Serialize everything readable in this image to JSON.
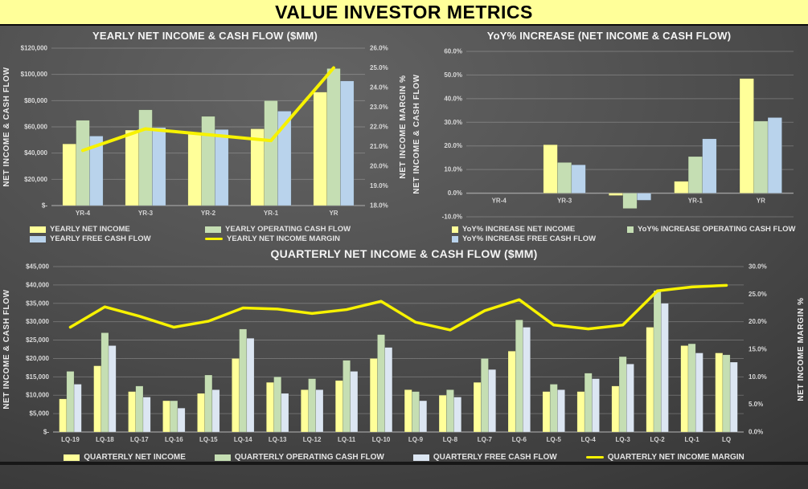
{
  "page": {
    "title": "VALUE INVESTOR METRICS"
  },
  "colors": {
    "title_bg": "#FFFF99",
    "bar_yellow": "#FFFF99",
    "bar_green": "#C5DEB3",
    "bar_blue": "#B9D3EC",
    "bar_blue_light": "#DCE6F2",
    "line_yellow": "#F7F200",
    "gridline": "rgba(255,255,255,0.22)",
    "zero_axis": "#9e9e9e"
  },
  "chart_data": [
    {
      "type": "bar+line",
      "title": "YEARLY NET INCOME & CASH FLOW ($MM)",
      "categories": [
        "YR-4",
        "YR-3",
        "YR-2",
        "YR-1",
        "YR"
      ],
      "series": [
        {
          "name": "YEARLY NET INCOME",
          "type": "bar",
          "color": "#FFFF99",
          "values": [
            47000,
            57500,
            55500,
            58500,
            86500
          ]
        },
        {
          "name": "YEARLY OPERATING CASH FLOW",
          "type": "bar",
          "color": "#C5DEB3",
          "values": [
            65000,
            73000,
            68000,
            80000,
            104500
          ]
        },
        {
          "name": "YEARLY FREE CASH FLOW",
          "type": "bar",
          "color": "#B9D3EC",
          "values": [
            53000,
            59500,
            58000,
            72000,
            95000
          ]
        },
        {
          "name": "YEARLY NET INCOME MARGIN",
          "type": "line",
          "axis": "right",
          "color": "#F7F200",
          "values": [
            20.8,
            21.9,
            21.6,
            21.3,
            25.0
          ]
        }
      ],
      "left_axis": {
        "label": "NET INCOME & CASH FLOW",
        "min": 0,
        "max": 120000,
        "step": 20000,
        "format": "usd"
      },
      "right_axis": {
        "label": "NET INCOME MARGIN %",
        "min": 18,
        "max": 26,
        "step": 1,
        "format": "pct"
      },
      "grid": true,
      "legend_position": "bottom"
    },
    {
      "type": "bar",
      "title": "YoY% INCREASE (NET INCOME & CASH FLOW)",
      "categories": [
        "YR-4",
        "YR-3",
        "YR-2",
        "YR-1",
        "YR"
      ],
      "series": [
        {
          "name": "YoY% INCREASE NET INCOME",
          "type": "bar",
          "color": "#FFFF99",
          "values": [
            null,
            20.5,
            -1.0,
            5.0,
            48.5
          ]
        },
        {
          "name": "YoY% INCREASE OPERATING CASH FLOW",
          "type": "bar",
          "color": "#C5DEB3",
          "values": [
            null,
            13.0,
            -6.5,
            15.5,
            30.5
          ]
        },
        {
          "name": "YoY% INCREASE FREE CASH FLOW",
          "type": "bar",
          "color": "#B9D3EC",
          "values": [
            null,
            12.0,
            -3.0,
            23.0,
            32.0
          ]
        }
      ],
      "left_axis": {
        "label": "NET INCOME & CASH FLOW",
        "min": -10,
        "max": 60,
        "step": 10,
        "format": "pct"
      },
      "grid": true,
      "legend_position": "bottom"
    },
    {
      "type": "bar+line",
      "title": "QUARTERLY NET INCOME & CASH FLOW ($MM)",
      "categories": [
        "LQ-19",
        "LQ-18",
        "LQ-17",
        "LQ-16",
        "LQ-15",
        "LQ-14",
        "LQ-13",
        "LQ-12",
        "LQ-11",
        "LQ-10",
        "LQ-9",
        "LQ-8",
        "LQ-7",
        "LQ-6",
        "LQ-5",
        "LQ-4",
        "LQ-3",
        "LQ-2",
        "LQ-1",
        "LQ"
      ],
      "series": [
        {
          "name": "QUARTERLY NET INCOME",
          "type": "bar",
          "color": "#FFFF99",
          "values": [
            9000,
            18000,
            11000,
            8500,
            10500,
            20000,
            13500,
            11500,
            14000,
            20000,
            11500,
            10000,
            13500,
            22000,
            11000,
            11000,
            12500,
            28500,
            23500,
            21500
          ]
        },
        {
          "name": "QUARTERLY OPERATING CASH FLOW",
          "type": "bar",
          "color": "#C5DEB3",
          "values": [
            16500,
            27000,
            12500,
            8500,
            15500,
            28000,
            15000,
            14500,
            19500,
            26500,
            11000,
            11500,
            20000,
            30500,
            13000,
            16000,
            20500,
            38500,
            24000,
            21000
          ]
        },
        {
          "name": "QUARTERLY FREE CASH FLOW",
          "type": "bar",
          "color": "#DCE6F2",
          "values": [
            13000,
            23500,
            9500,
            6500,
            11500,
            25500,
            10500,
            11500,
            16500,
            23000,
            8500,
            9500,
            17000,
            28500,
            11500,
            14500,
            18500,
            35000,
            21500,
            19000
          ]
        },
        {
          "name": "QUARTERLY NET INCOME MARGIN",
          "type": "line",
          "axis": "right",
          "color": "#F7F200",
          "values": [
            19.0,
            22.7,
            21.0,
            19.0,
            20.1,
            22.5,
            22.3,
            21.5,
            22.2,
            23.7,
            19.9,
            18.5,
            22.0,
            24.0,
            19.4,
            18.7,
            19.4,
            25.6,
            26.3,
            26.6
          ]
        }
      ],
      "left_axis": {
        "label": "NET INCOME & CASH FLOW",
        "min": 0,
        "max": 45000,
        "step": 5000,
        "format": "usd"
      },
      "right_axis": {
        "label": "NET INCOME MARGIN %",
        "min": 0,
        "max": 30,
        "step": 5,
        "format": "pct"
      },
      "grid": true,
      "legend_position": "bottom"
    }
  ]
}
